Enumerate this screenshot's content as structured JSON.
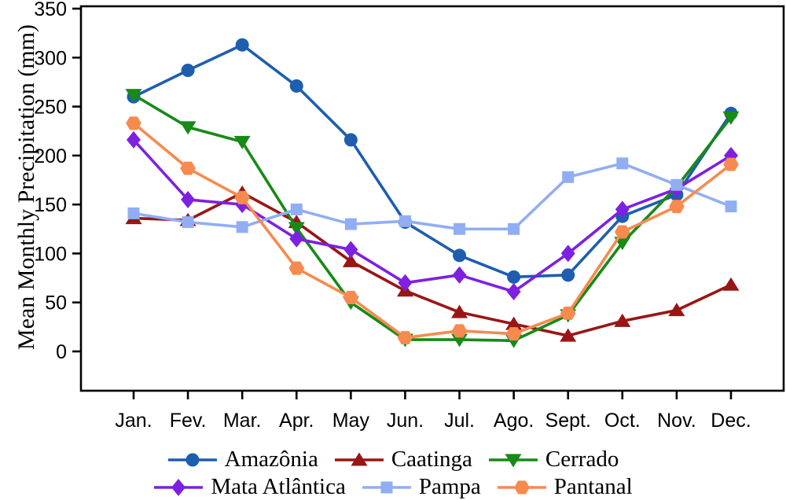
{
  "chart_data": {
    "type": "line",
    "title": "",
    "xlabel": "",
    "ylabel": "Mean Monthly Precipitation (mm)",
    "categories": [
      "Jan.",
      "Fev.",
      "Mar.",
      "Apr.",
      "May",
      "Jun.",
      "Jul.",
      "Ago.",
      "Sept.",
      "Oct.",
      "Nov.",
      "Dec."
    ],
    "yticks": [
      0,
      50,
      100,
      150,
      200,
      250,
      300,
      350
    ],
    "ylim": [
      -40,
      352
    ],
    "grid": false,
    "legend_position": "bottom",
    "axis_color": "#000000",
    "series": [
      {
        "name": "Amazônia",
        "marker": "circle",
        "color": "#1e5eae",
        "values": [
          260,
          287,
          313,
          271,
          216,
          132,
          98,
          76,
          78,
          138,
          160,
          243
        ]
      },
      {
        "name": "Caatinga",
        "marker": "triangle-up",
        "color": "#9a1515",
        "values": [
          136,
          134,
          162,
          132,
          92,
          62,
          40,
          28,
          16,
          31,
          42,
          68
        ]
      },
      {
        "name": "Cerrado",
        "marker": "triangle-down",
        "color": "#178a17",
        "values": [
          262,
          229,
          214,
          126,
          50,
          12,
          12,
          11,
          37,
          111,
          168,
          239
        ]
      },
      {
        "name": "Mata Atlântica",
        "marker": "diamond",
        "color": "#7e20e0",
        "values": [
          216,
          155,
          150,
          115,
          104,
          70,
          78,
          61,
          100,
          145,
          166,
          200
        ]
      },
      {
        "name": "Pampa",
        "marker": "square",
        "color": "#91aef4",
        "values": [
          141,
          132,
          127,
          145,
          130,
          133,
          125,
          125,
          178,
          192,
          170,
          148
        ]
      },
      {
        "name": "Pantanal",
        "marker": "hexagon",
        "color": "#f78a4e",
        "values": [
          233,
          187,
          157,
          85,
          55,
          14,
          21,
          18,
          39,
          122,
          148,
          191
        ]
      }
    ]
  }
}
